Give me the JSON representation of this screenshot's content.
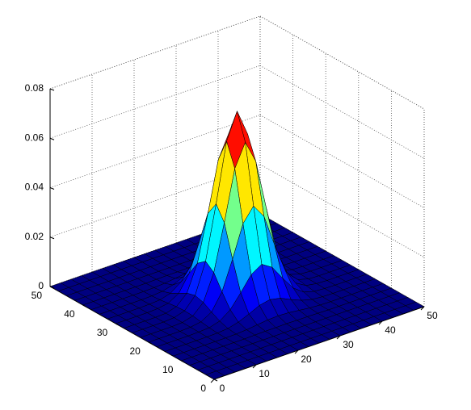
{
  "chart_data": {
    "type": "surface",
    "colormap": "jet",
    "grid": true,
    "edge_color": "#000000",
    "x": [
      0,
      2.5,
      5,
      7.5,
      10,
      12.5,
      15,
      17.5,
      20,
      22.5,
      25,
      27.5,
      30,
      32.5,
      35,
      37.5,
      40,
      42.5,
      45,
      47.5,
      50
    ],
    "y": [
      0,
      2.5,
      5,
      7.5,
      10,
      12.5,
      15,
      17.5,
      20,
      22.5,
      25,
      27.5,
      30,
      32.5,
      35,
      37.5,
      40,
      42.5,
      45,
      47.5,
      50
    ],
    "z": [
      [
        0,
        0,
        0,
        0,
        0,
        0,
        0,
        0,
        0,
        0,
        0,
        0,
        0,
        0,
        0,
        0,
        0,
        0,
        0,
        0,
        0
      ],
      [
        0,
        0,
        0,
        0,
        0,
        0,
        0,
        0,
        0,
        0,
        0,
        0,
        0,
        0,
        0,
        0,
        0,
        0,
        0,
        0,
        0
      ],
      [
        0,
        0,
        0,
        0,
        0,
        0,
        0,
        0,
        0,
        0,
        0,
        0,
        0,
        0,
        0,
        0,
        0,
        0,
        0,
        0,
        0
      ],
      [
        0,
        0,
        0,
        0,
        0,
        0,
        0,
        0,
        0,
        0,
        0,
        0,
        0,
        0,
        0,
        0,
        0,
        0,
        0,
        0,
        0
      ],
      [
        0,
        0,
        0,
        0,
        0,
        0,
        0,
        0.0001,
        0.0002,
        0.0002,
        0.0003,
        0.0002,
        0.0002,
        0.0001,
        0,
        0,
        0,
        0,
        0,
        0,
        0
      ],
      [
        0,
        0,
        0,
        0,
        0,
        0,
        0.0001,
        0.0004,
        0.0009,
        0.0014,
        0.0016,
        0.0014,
        0.0009,
        0.0004,
        0.0001,
        0,
        0,
        0,
        0,
        0,
        0
      ],
      [
        0,
        0,
        0,
        0,
        0,
        0.0001,
        0.0005,
        0.0016,
        0.0034,
        0.0054,
        0.0063,
        0.0054,
        0.0034,
        0.0016,
        0.0005,
        0.0001,
        0,
        0,
        0,
        0,
        0
      ],
      [
        0,
        0,
        0,
        0,
        0.0001,
        0.0004,
        0.0016,
        0.0047,
        0.0101,
        0.016,
        0.0187,
        0.016,
        0.0101,
        0.0047,
        0.0016,
        0.0004,
        0.0001,
        0,
        0,
        0,
        0
      ],
      [
        0,
        0,
        0,
        0,
        0.0002,
        0.0009,
        0.0034,
        0.0101,
        0.0218,
        0.0347,
        0.0404,
        0.0347,
        0.0218,
        0.0101,
        0.0034,
        0.0009,
        0.0002,
        0,
        0,
        0,
        0
      ],
      [
        0,
        0,
        0,
        0,
        0.0002,
        0.0014,
        0.0054,
        0.016,
        0.0347,
        0.0551,
        0.0643,
        0.0551,
        0.0347,
        0.016,
        0.0054,
        0.0014,
        0.0002,
        0,
        0,
        0,
        0
      ],
      [
        0,
        0,
        0,
        0,
        0.0003,
        0.0016,
        0.0063,
        0.0187,
        0.0404,
        0.0643,
        0.075,
        0.0643,
        0.0404,
        0.0187,
        0.0063,
        0.0016,
        0.0003,
        0,
        0,
        0,
        0
      ],
      [
        0,
        0,
        0,
        0,
        0.0002,
        0.0014,
        0.0054,
        0.016,
        0.0347,
        0.0551,
        0.0643,
        0.0551,
        0.0347,
        0.016,
        0.0054,
        0.0014,
        0.0002,
        0,
        0,
        0,
        0
      ],
      [
        0,
        0,
        0,
        0,
        0.0002,
        0.0009,
        0.0034,
        0.0101,
        0.0218,
        0.0347,
        0.0404,
        0.0347,
        0.0218,
        0.0101,
        0.0034,
        0.0009,
        0.0002,
        0,
        0,
        0,
        0
      ],
      [
        0,
        0,
        0,
        0,
        0.0001,
        0.0004,
        0.0016,
        0.0047,
        0.0101,
        0.016,
        0.0187,
        0.016,
        0.0101,
        0.0047,
        0.0016,
        0.0004,
        0.0001,
        0,
        0,
        0,
        0
      ],
      [
        0,
        0,
        0,
        0,
        0,
        0.0001,
        0.0005,
        0.0016,
        0.0034,
        0.0054,
        0.0063,
        0.0054,
        0.0034,
        0.0016,
        0.0005,
        0.0001,
        0,
        0,
        0,
        0,
        0
      ],
      [
        0,
        0,
        0,
        0,
        0,
        0,
        0.0001,
        0.0004,
        0.0009,
        0.0014,
        0.0016,
        0.0014,
        0.0009,
        0.0004,
        0.0001,
        0,
        0,
        0,
        0,
        0,
        0
      ],
      [
        0,
        0,
        0,
        0,
        0,
        0,
        0,
        0.0001,
        0.0002,
        0.0002,
        0.0003,
        0.0002,
        0.0002,
        0.0001,
        0,
        0,
        0,
        0,
        0,
        0,
        0
      ],
      [
        0,
        0,
        0,
        0,
        0,
        0,
        0,
        0,
        0,
        0,
        0,
        0,
        0,
        0,
        0,
        0,
        0,
        0,
        0,
        0,
        0
      ],
      [
        0,
        0,
        0,
        0,
        0,
        0,
        0,
        0,
        0,
        0,
        0,
        0,
        0,
        0,
        0,
        0,
        0,
        0,
        0,
        0,
        0
      ],
      [
        0,
        0,
        0,
        0,
        0,
        0,
        0,
        0,
        0,
        0,
        0,
        0,
        0,
        0,
        0,
        0,
        0,
        0,
        0,
        0,
        0
      ],
      [
        0,
        0,
        0,
        0,
        0,
        0,
        0,
        0,
        0,
        0,
        0,
        0,
        0,
        0,
        0,
        0,
        0,
        0,
        0,
        0,
        0
      ]
    ],
    "xlim": [
      0,
      50
    ],
    "ylim": [
      0,
      50
    ],
    "zlim": [
      0,
      0.08
    ],
    "xticks": [
      0,
      10,
      20,
      30,
      40,
      50
    ],
    "yticks": [
      0,
      10,
      20,
      30,
      40,
      50
    ],
    "zticks": [
      0,
      0.02,
      0.04,
      0.06,
      0.08
    ]
  }
}
